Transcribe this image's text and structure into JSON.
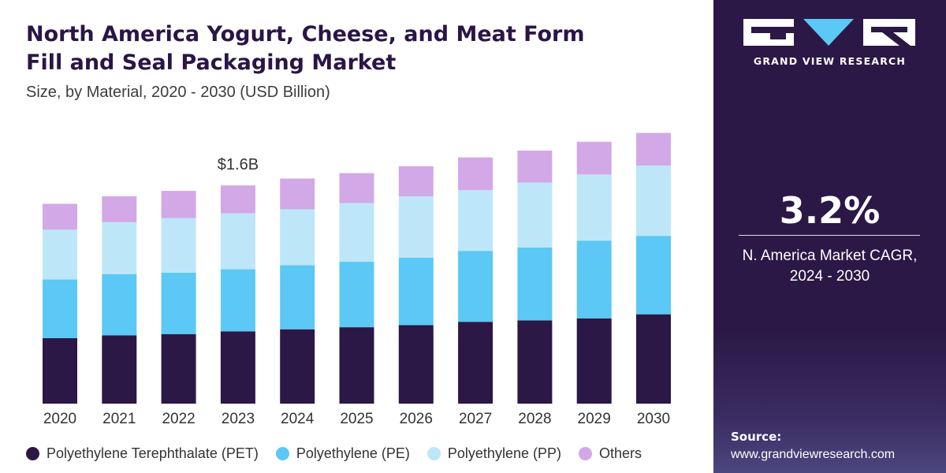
{
  "header": {
    "title_line1": "North America Yogurt, Cheese, and Meat Form",
    "title_line2": "Fill and Seal Packaging Market",
    "subtitle": "Size, by Material, 2020 - 2030 (USD Billion)"
  },
  "chart_data": {
    "type": "bar",
    "stacked": true,
    "title": "North America Yogurt, Cheese, and Meat Form Fill and Seal Packaging Market",
    "subtitle": "Size, by Material, 2020 - 2030 (USD Billion)",
    "categories": [
      "2020",
      "2021",
      "2022",
      "2023",
      "2024",
      "2025",
      "2026",
      "2027",
      "2028",
      "2029",
      "2030"
    ],
    "series": [
      {
        "name": "Polyethylene Terephthalate (PET)",
        "color": "#2b1846",
        "values": [
          0.48,
          0.5,
          0.51,
          0.53,
          0.545,
          0.56,
          0.575,
          0.6,
          0.61,
          0.625,
          0.655
        ]
      },
      {
        "name": "Polyethylene (PE)",
        "color": "#5bc8f5",
        "values": [
          0.43,
          0.45,
          0.45,
          0.455,
          0.47,
          0.48,
          0.495,
          0.52,
          0.535,
          0.57,
          0.575
        ]
      },
      {
        "name": "Polyethylene (PP)",
        "color": "#bde7f8",
        "values": [
          0.365,
          0.38,
          0.4,
          0.41,
          0.41,
          0.43,
          0.45,
          0.445,
          0.475,
          0.485,
          0.515
        ]
      },
      {
        "name": "Others",
        "color": "#d3a8e7",
        "values": [
          0.19,
          0.19,
          0.2,
          0.205,
          0.225,
          0.22,
          0.22,
          0.24,
          0.235,
          0.24,
          0.24
        ]
      }
    ],
    "annotations": [
      {
        "category": "2023",
        "text": "$1.6B"
      }
    ],
    "ylim": [
      0,
      2.15
    ],
    "grid": false,
    "legend_position": "bottom",
    "xlabel": "",
    "ylabel": ""
  },
  "sidebar": {
    "brand": "GRAND VIEW RESEARCH",
    "cagr_value": "3.2%",
    "cagr_label_line1": "N. America Market CAGR,",
    "cagr_label_line2": "2024 - 2030",
    "source_label": "Source:",
    "source_url": "www.grandviewresearch.com",
    "logo_colors": {
      "text": "#ffffff",
      "accent": "#5bc8f5"
    }
  }
}
